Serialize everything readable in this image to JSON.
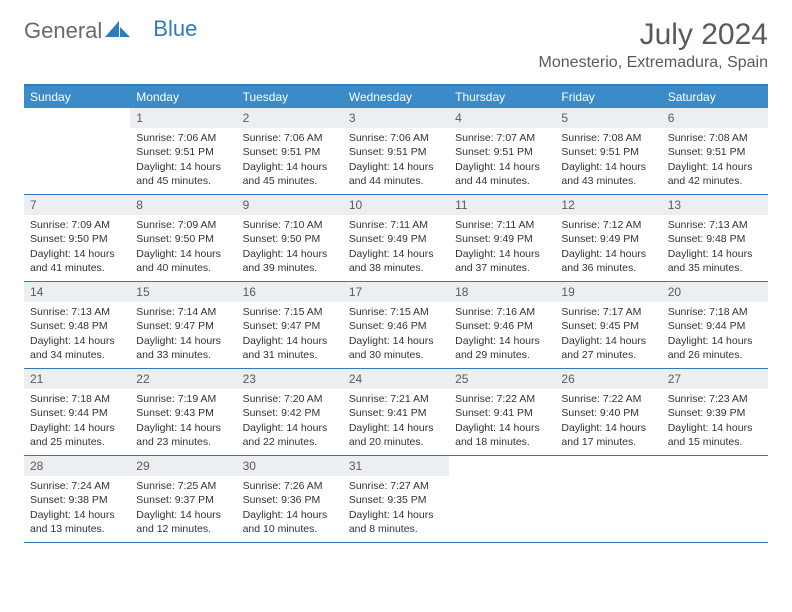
{
  "brand": {
    "text1": "General",
    "text2": "Blue",
    "icon_color": "#2f7bbf"
  },
  "header": {
    "month_title": "July 2024",
    "location": "Monesterio, Extremadura, Spain"
  },
  "colors": {
    "header_bar": "#3b8bc9",
    "border": "#2f7bbf",
    "daynum_bg": "#eceff1",
    "text": "#333333",
    "title_text": "#5a5a5a"
  },
  "weekdays": [
    "Sunday",
    "Monday",
    "Tuesday",
    "Wednesday",
    "Thursday",
    "Friday",
    "Saturday"
  ],
  "days": [
    {
      "n": "",
      "sr": "",
      "ss": "",
      "dl": ""
    },
    {
      "n": "1",
      "sr": "Sunrise: 7:06 AM",
      "ss": "Sunset: 9:51 PM",
      "dl": "Daylight: 14 hours and 45 minutes."
    },
    {
      "n": "2",
      "sr": "Sunrise: 7:06 AM",
      "ss": "Sunset: 9:51 PM",
      "dl": "Daylight: 14 hours and 45 minutes."
    },
    {
      "n": "3",
      "sr": "Sunrise: 7:06 AM",
      "ss": "Sunset: 9:51 PM",
      "dl": "Daylight: 14 hours and 44 minutes."
    },
    {
      "n": "4",
      "sr": "Sunrise: 7:07 AM",
      "ss": "Sunset: 9:51 PM",
      "dl": "Daylight: 14 hours and 44 minutes."
    },
    {
      "n": "5",
      "sr": "Sunrise: 7:08 AM",
      "ss": "Sunset: 9:51 PM",
      "dl": "Daylight: 14 hours and 43 minutes."
    },
    {
      "n": "6",
      "sr": "Sunrise: 7:08 AM",
      "ss": "Sunset: 9:51 PM",
      "dl": "Daylight: 14 hours and 42 minutes."
    },
    {
      "n": "7",
      "sr": "Sunrise: 7:09 AM",
      "ss": "Sunset: 9:50 PM",
      "dl": "Daylight: 14 hours and 41 minutes."
    },
    {
      "n": "8",
      "sr": "Sunrise: 7:09 AM",
      "ss": "Sunset: 9:50 PM",
      "dl": "Daylight: 14 hours and 40 minutes."
    },
    {
      "n": "9",
      "sr": "Sunrise: 7:10 AM",
      "ss": "Sunset: 9:50 PM",
      "dl": "Daylight: 14 hours and 39 minutes."
    },
    {
      "n": "10",
      "sr": "Sunrise: 7:11 AM",
      "ss": "Sunset: 9:49 PM",
      "dl": "Daylight: 14 hours and 38 minutes."
    },
    {
      "n": "11",
      "sr": "Sunrise: 7:11 AM",
      "ss": "Sunset: 9:49 PM",
      "dl": "Daylight: 14 hours and 37 minutes."
    },
    {
      "n": "12",
      "sr": "Sunrise: 7:12 AM",
      "ss": "Sunset: 9:49 PM",
      "dl": "Daylight: 14 hours and 36 minutes."
    },
    {
      "n": "13",
      "sr": "Sunrise: 7:13 AM",
      "ss": "Sunset: 9:48 PM",
      "dl": "Daylight: 14 hours and 35 minutes."
    },
    {
      "n": "14",
      "sr": "Sunrise: 7:13 AM",
      "ss": "Sunset: 9:48 PM",
      "dl": "Daylight: 14 hours and 34 minutes."
    },
    {
      "n": "15",
      "sr": "Sunrise: 7:14 AM",
      "ss": "Sunset: 9:47 PM",
      "dl": "Daylight: 14 hours and 33 minutes."
    },
    {
      "n": "16",
      "sr": "Sunrise: 7:15 AM",
      "ss": "Sunset: 9:47 PM",
      "dl": "Daylight: 14 hours and 31 minutes."
    },
    {
      "n": "17",
      "sr": "Sunrise: 7:15 AM",
      "ss": "Sunset: 9:46 PM",
      "dl": "Daylight: 14 hours and 30 minutes."
    },
    {
      "n": "18",
      "sr": "Sunrise: 7:16 AM",
      "ss": "Sunset: 9:46 PM",
      "dl": "Daylight: 14 hours and 29 minutes."
    },
    {
      "n": "19",
      "sr": "Sunrise: 7:17 AM",
      "ss": "Sunset: 9:45 PM",
      "dl": "Daylight: 14 hours and 27 minutes."
    },
    {
      "n": "20",
      "sr": "Sunrise: 7:18 AM",
      "ss": "Sunset: 9:44 PM",
      "dl": "Daylight: 14 hours and 26 minutes."
    },
    {
      "n": "21",
      "sr": "Sunrise: 7:18 AM",
      "ss": "Sunset: 9:44 PM",
      "dl": "Daylight: 14 hours and 25 minutes."
    },
    {
      "n": "22",
      "sr": "Sunrise: 7:19 AM",
      "ss": "Sunset: 9:43 PM",
      "dl": "Daylight: 14 hours and 23 minutes."
    },
    {
      "n": "23",
      "sr": "Sunrise: 7:20 AM",
      "ss": "Sunset: 9:42 PM",
      "dl": "Daylight: 14 hours and 22 minutes."
    },
    {
      "n": "24",
      "sr": "Sunrise: 7:21 AM",
      "ss": "Sunset: 9:41 PM",
      "dl": "Daylight: 14 hours and 20 minutes."
    },
    {
      "n": "25",
      "sr": "Sunrise: 7:22 AM",
      "ss": "Sunset: 9:41 PM",
      "dl": "Daylight: 14 hours and 18 minutes."
    },
    {
      "n": "26",
      "sr": "Sunrise: 7:22 AM",
      "ss": "Sunset: 9:40 PM",
      "dl": "Daylight: 14 hours and 17 minutes."
    },
    {
      "n": "27",
      "sr": "Sunrise: 7:23 AM",
      "ss": "Sunset: 9:39 PM",
      "dl": "Daylight: 14 hours and 15 minutes."
    },
    {
      "n": "28",
      "sr": "Sunrise: 7:24 AM",
      "ss": "Sunset: 9:38 PM",
      "dl": "Daylight: 14 hours and 13 minutes."
    },
    {
      "n": "29",
      "sr": "Sunrise: 7:25 AM",
      "ss": "Sunset: 9:37 PM",
      "dl": "Daylight: 14 hours and 12 minutes."
    },
    {
      "n": "30",
      "sr": "Sunrise: 7:26 AM",
      "ss": "Sunset: 9:36 PM",
      "dl": "Daylight: 14 hours and 10 minutes."
    },
    {
      "n": "31",
      "sr": "Sunrise: 7:27 AM",
      "ss": "Sunset: 9:35 PM",
      "dl": "Daylight: 14 hours and 8 minutes."
    },
    {
      "n": "",
      "sr": "",
      "ss": "",
      "dl": ""
    },
    {
      "n": "",
      "sr": "",
      "ss": "",
      "dl": ""
    },
    {
      "n": "",
      "sr": "",
      "ss": "",
      "dl": ""
    }
  ]
}
